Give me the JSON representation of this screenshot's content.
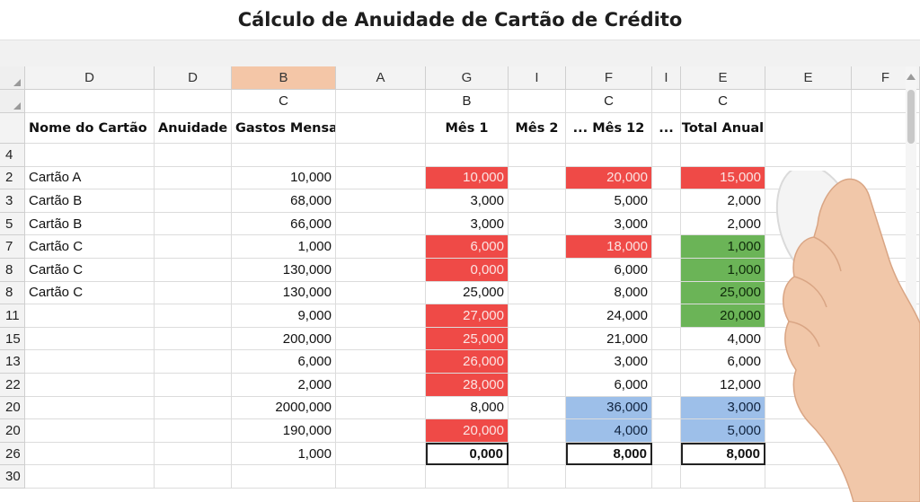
{
  "title": "Cálculo de Anuidade de Cartão de Crédito",
  "columns": [
    {
      "letter": "D",
      "sub": "",
      "header": "Nome do Cartão"
    },
    {
      "letter": "D",
      "sub": "",
      "header": "Anuidade"
    },
    {
      "letter": "B",
      "sub": "C",
      "header": "Gastos Mensais"
    },
    {
      "letter": "A",
      "sub": "",
      "header": ""
    },
    {
      "letter": "G",
      "sub": "B",
      "header": "Mês 1"
    },
    {
      "letter": "I",
      "sub": "",
      "header": "Mês 2"
    },
    {
      "letter": "F",
      "sub": "C",
      "header": "... Mês 12"
    },
    {
      "letter": "I",
      "sub": "",
      "header": "..."
    },
    {
      "letter": "E",
      "sub": "C",
      "header": "Total Anual"
    },
    {
      "letter": "E",
      "sub": "",
      "header": ""
    },
    {
      "letter": "F",
      "sub": "",
      "header": ""
    }
  ],
  "row_numbers": [
    "4",
    "2",
    "3",
    "5",
    "7",
    "8",
    "8",
    "11",
    "15",
    "13",
    "22",
    "20",
    "20",
    "26",
    "30"
  ],
  "rows": [
    {
      "name": "",
      "gastos": "",
      "mes1": "",
      "mes12": "",
      "total": ""
    },
    {
      "name": "Cartão A",
      "gastos": "10,000",
      "mes1": "10,000",
      "mes12": "20,000",
      "total": "15,000",
      "mes1_fill": "red",
      "mes12_fill": "red",
      "total_fill": "red"
    },
    {
      "name": "Cartão B",
      "gastos": "68,000",
      "mes1": "3,000",
      "mes12": "5,000",
      "total": "2,000"
    },
    {
      "name": "Cartão B",
      "gastos": "66,000",
      "mes1": "3,000",
      "mes12": "3,000",
      "total": "2,000"
    },
    {
      "name": "Cartão C",
      "gastos": "1,000",
      "mes1": "6,000",
      "mes12": "18,000",
      "total": "1,000",
      "mes1_fill": "red",
      "mes12_fill": "red",
      "total_fill": "green"
    },
    {
      "name": "Cartão C",
      "gastos": "130,000",
      "mes1": "0,000",
      "mes12": "6,000",
      "total": "1,000",
      "mes1_fill": "red",
      "total_fill": "green"
    },
    {
      "name": "Cartão C",
      "gastos": "130,000",
      "mes1": "25,000",
      "mes12": "8,000",
      "total": "25,000",
      "total_fill": "green"
    },
    {
      "name": "",
      "gastos": "9,000",
      "mes1": "27,000",
      "mes12": "24,000",
      "total": "20,000",
      "mes1_fill": "red",
      "total_fill": "green"
    },
    {
      "name": "",
      "gastos": "200,000",
      "mes1": "25,000",
      "mes12": "21,000",
      "total": "4,000",
      "mes1_fill": "red"
    },
    {
      "name": "",
      "gastos": "6,000",
      "mes1": "26,000",
      "mes12": "3,000",
      "total": "6,000",
      "mes1_fill": "red"
    },
    {
      "name": "",
      "gastos": "2,000",
      "mes1": "28,000",
      "mes12": "6,000",
      "total": "12,000",
      "mes1_fill": "red"
    },
    {
      "name": "",
      "gastos": "2000,000",
      "mes1": "8,000",
      "mes12": "36,000",
      "total": "3,000",
      "mes12_fill": "blue",
      "total_fill": "blue"
    },
    {
      "name": "",
      "gastos": "190,000",
      "mes1": "20,000",
      "mes12": "4,000",
      "total": "5,000",
      "mes1_fill": "red",
      "mes12_fill": "blue",
      "total_fill": "blue"
    },
    {
      "name": "",
      "gastos": "1,000",
      "mes1": "0,000",
      "mes12": "8,000",
      "total": "8,000",
      "totals_row": true
    },
    {
      "name": "",
      "gastos": "",
      "mes1": "",
      "mes12": "",
      "total": ""
    }
  ],
  "colors": {
    "red": "#ef4a47",
    "green": "#6bb457",
    "blue": "#9dbfe9",
    "selected_header": "#f4c6a7"
  }
}
